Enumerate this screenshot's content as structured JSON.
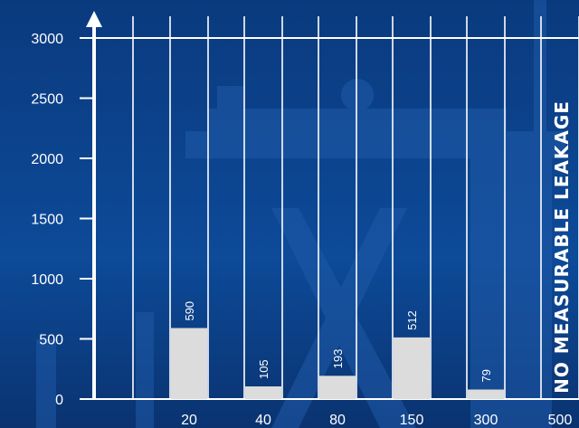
{
  "chart_data": {
    "type": "bar",
    "title": "",
    "xlabel": "",
    "ylabel": "",
    "ylim": [
      0,
      3000
    ],
    "yticks": [
      0,
      500,
      1000,
      1500,
      2000,
      2500,
      3000
    ],
    "categories": [
      "20",
      "40",
      "80",
      "150",
      "300",
      "500"
    ],
    "values": [
      590,
      105,
      193,
      512,
      79,
      null
    ],
    "data_labels": [
      "590",
      "105",
      "193",
      "512",
      "79",
      ""
    ],
    "annotation": "NO MEASURABLE LEAKAGE",
    "grid": false,
    "legend": "none"
  },
  "colors": {
    "background": "#0b3f86",
    "axis": "#ffffff",
    "bar": "#dcdcdc",
    "text": "#ffffff"
  }
}
